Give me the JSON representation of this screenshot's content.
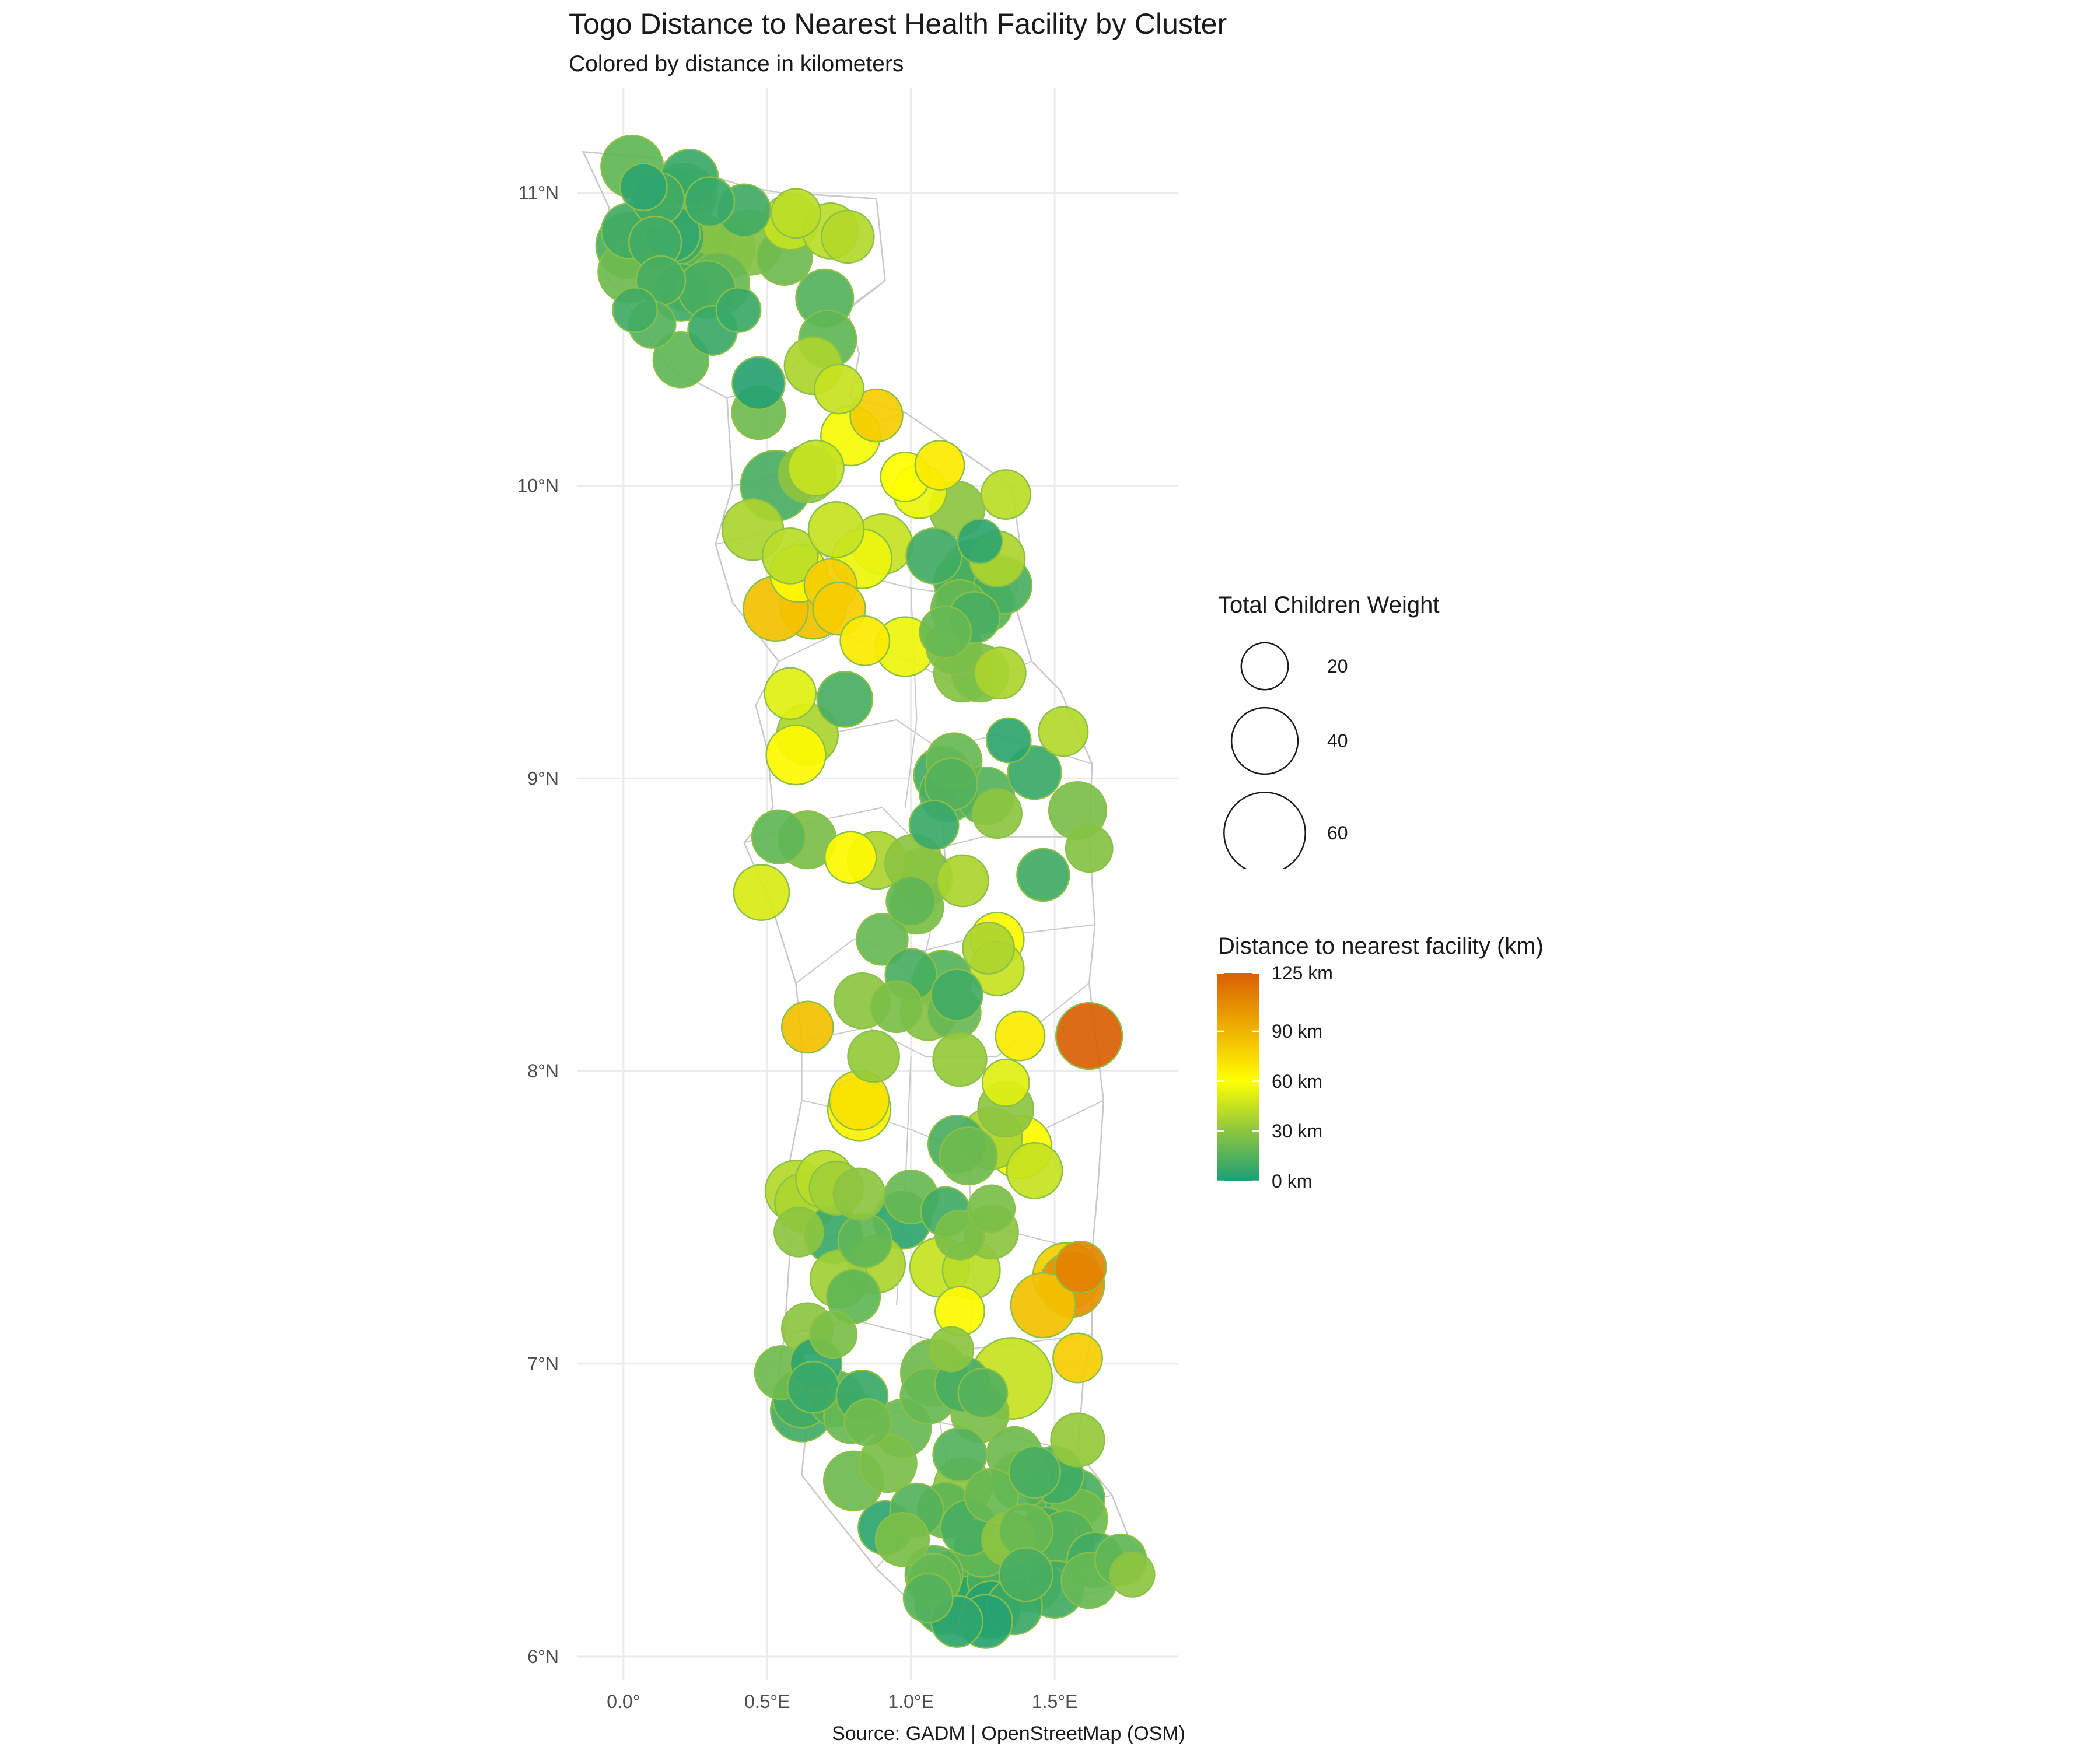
{
  "title": "Togo Distance to Nearest Health Facility by Cluster",
  "subtitle": "Colored by distance in kilometers",
  "caption": "Source: GADM | OpenStreetMap (OSM)",
  "map": {
    "x_axis": {
      "ticks": [
        0.0,
        0.5,
        1.0,
        1.5
      ],
      "labels": [
        "0.0°",
        "0.5°E",
        "1.0°E",
        "1.5°E"
      ],
      "range": [
        -0.16,
        1.93
      ]
    },
    "y_axis": {
      "ticks": [
        6,
        7,
        8,
        9,
        10,
        11
      ],
      "labels": [
        "6°N",
        "7°N",
        "8°N",
        "9°N",
        "10°N",
        "11°N"
      ],
      "range": [
        5.92,
        11.36
      ]
    },
    "grid": true,
    "boundary_color": "#c8c8c8",
    "point_outline": "#8cbf4a"
  },
  "legend_size": {
    "title": "Total Children Weight",
    "entries": [
      {
        "value": 20,
        "label": "20"
      },
      {
        "value": 40,
        "label": "40"
      },
      {
        "value": 60,
        "label": "60"
      }
    ]
  },
  "legend_color": {
    "title": "Distance to nearest facility (km)",
    "min": 0,
    "max": 125,
    "stops": [
      {
        "value": 0,
        "color": "#1b9e77"
      },
      {
        "value": 30,
        "color": "#8cc63f"
      },
      {
        "value": 60,
        "color": "#ffff00"
      },
      {
        "value": 90,
        "color": "#f0b400"
      },
      {
        "value": 125,
        "color": "#d95f02"
      }
    ],
    "labels": [
      {
        "value": 0,
        "label": "0 km"
      },
      {
        "value": 30,
        "label": "30 km"
      },
      {
        "value": 60,
        "label": "60 km"
      },
      {
        "value": 90,
        "label": "90 km"
      },
      {
        "value": 125,
        "label": "125 km"
      }
    ]
  },
  "chart_data": {
    "type": "scatter",
    "x_field": "longitude (°E)",
    "y_field": "latitude (°N)",
    "size_field": "Total Children Weight",
    "color_field": "Distance to nearest facility (km)",
    "points": [
      [
        0.03,
        11.09,
        35,
        18
      ],
      [
        0.07,
        11.02,
        20,
        5
      ],
      [
        0.12,
        10.98,
        25,
        10
      ],
      [
        0.18,
        10.99,
        30,
        8
      ],
      [
        0.23,
        11.05,
        30,
        8
      ],
      [
        0.21,
        10.99,
        38,
        12
      ],
      [
        0.3,
        10.97,
        22,
        8
      ],
      [
        0.42,
        10.94,
        25,
        10
      ],
      [
        0.02,
        10.87,
        28,
        10
      ],
      [
        0.02,
        10.82,
        40,
        12
      ],
      [
        0.11,
        10.83,
        25,
        10
      ],
      [
        0.18,
        10.85,
        30,
        9
      ],
      [
        0.17,
        10.86,
        28,
        6
      ],
      [
        0.27,
        10.82,
        35,
        22
      ],
      [
        0.35,
        10.81,
        35,
        28
      ],
      [
        0.44,
        10.83,
        38,
        28
      ],
      [
        0.56,
        10.78,
        28,
        22
      ],
      [
        0.6,
        10.93,
        22,
        42
      ],
      [
        0.58,
        10.9,
        28,
        45
      ],
      [
        0.72,
        10.87,
        28,
        42
      ],
      [
        0.78,
        10.85,
        25,
        40
      ],
      [
        0.02,
        10.73,
        35,
        22
      ],
      [
        0.13,
        10.7,
        22,
        12
      ],
      [
        0.23,
        10.7,
        35,
        15
      ],
      [
        0.2,
        10.66,
        30,
        10
      ],
      [
        0.29,
        10.67,
        30,
        12
      ],
      [
        0.33,
        10.69,
        35,
        20
      ],
      [
        0.04,
        10.6,
        18,
        10
      ],
      [
        0.1,
        10.55,
        20,
        15
      ],
      [
        0.2,
        10.43,
        28,
        18
      ],
      [
        0.31,
        10.53,
        22,
        8
      ],
      [
        0.4,
        10.6,
        18,
        8
      ],
      [
        0.7,
        10.64,
        30,
        15
      ],
      [
        0.71,
        10.5,
        30,
        18
      ],
      [
        0.66,
        10.41,
        30,
        38
      ],
      [
        0.47,
        10.35,
        25,
        3
      ],
      [
        0.75,
        10.33,
        22,
        45
      ],
      [
        0.47,
        10.25,
        26,
        22
      ],
      [
        0.88,
        10.24,
        25,
        80
      ],
      [
        0.79,
        10.17,
        32,
        58
      ],
      [
        0.53,
        10.0,
        45,
        12
      ],
      [
        0.64,
        10.04,
        30,
        30
      ],
      [
        0.67,
        10.06,
        28,
        45
      ],
      [
        0.98,
        10.03,
        22,
        60
      ],
      [
        1.1,
        10.07,
        22,
        68
      ],
      [
        1.03,
        9.98,
        26,
        55
      ],
      [
        1.16,
        9.92,
        28,
        30
      ],
      [
        1.33,
        9.97,
        22,
        42
      ],
      [
        0.45,
        9.85,
        34,
        38
      ],
      [
        0.58,
        9.76,
        28,
        42
      ],
      [
        0.74,
        9.85,
        28,
        45
      ],
      [
        0.83,
        9.75,
        32,
        55
      ],
      [
        0.9,
        9.8,
        33,
        45
      ],
      [
        1.08,
        9.76,
        28,
        10
      ],
      [
        1.24,
        9.81,
        18,
        5
      ],
      [
        1.3,
        9.75,
        28,
        38
      ],
      [
        1.22,
        9.71,
        35,
        15
      ],
      [
        1.18,
        9.67,
        30,
        12
      ],
      [
        1.32,
        9.66,
        30,
        12
      ],
      [
        1.2,
        9.62,
        38,
        12
      ],
      [
        1.25,
        9.6,
        34,
        15
      ],
      [
        0.61,
        9.7,
        30,
        62
      ],
      [
        0.72,
        9.66,
        25,
        80
      ],
      [
        0.53,
        9.58,
        38,
        85
      ],
      [
        0.66,
        9.59,
        40,
        85
      ],
      [
        0.75,
        9.58,
        25,
        80
      ],
      [
        0.84,
        9.47,
        22,
        68
      ],
      [
        0.98,
        9.45,
        32,
        55
      ],
      [
        1.17,
        9.58,
        30,
        20
      ],
      [
        1.22,
        9.55,
        24,
        12
      ],
      [
        1.12,
        9.5,
        24,
        20
      ],
      [
        1.15,
        9.45,
        28,
        25
      ],
      [
        1.18,
        9.36,
        30,
        28
      ],
      [
        1.24,
        9.36,
        30,
        25
      ],
      [
        1.31,
        9.36,
        24,
        38
      ],
      [
        0.58,
        9.29,
        24,
        52
      ],
      [
        0.77,
        9.27,
        28,
        12
      ],
      [
        0.64,
        9.15,
        34,
        38
      ],
      [
        0.6,
        9.08,
        32,
        62
      ],
      [
        1.15,
        9.06,
        28,
        20
      ],
      [
        1.34,
        9.13,
        18,
        5
      ],
      [
        1.53,
        9.16,
        22,
        40
      ],
      [
        1.11,
        9.01,
        30,
        10
      ],
      [
        1.14,
        8.98,
        25,
        15
      ],
      [
        1.13,
        8.95,
        30,
        12
      ],
      [
        1.26,
        8.94,
        30,
        15
      ],
      [
        1.43,
        9.02,
        26,
        8
      ],
      [
        1.58,
        8.89,
        30,
        25
      ],
      [
        1.3,
        8.88,
        22,
        30
      ],
      [
        1.08,
        8.84,
        22,
        8
      ],
      [
        0.54,
        8.8,
        26,
        18
      ],
      [
        0.64,
        8.79,
        30,
        25
      ],
      [
        0.79,
        8.73,
        24,
        62
      ],
      [
        0.88,
        8.72,
        30,
        38
      ],
      [
        1.01,
        8.71,
        30,
        30
      ],
      [
        1.04,
        8.66,
        32,
        20
      ],
      [
        1.18,
        8.65,
        24,
        38
      ],
      [
        1.46,
        8.67,
        25,
        10
      ],
      [
        1.62,
        8.76,
        20,
        28
      ],
      [
        0.48,
        8.61,
        28,
        50
      ],
      [
        1.0,
        8.58,
        22,
        18
      ],
      [
        1.02,
        8.56,
        26,
        25
      ],
      [
        0.9,
        8.45,
        24,
        20
      ],
      [
        1.3,
        8.45,
        26,
        62
      ],
      [
        1.27,
        8.42,
        24,
        38
      ],
      [
        1.3,
        8.35,
        26,
        45
      ],
      [
        1.0,
        8.33,
        24,
        12
      ],
      [
        1.11,
        8.31,
        32,
        15
      ],
      [
        1.16,
        8.26,
        24,
        10
      ],
      [
        0.83,
        8.24,
        28,
        30
      ],
      [
        0.95,
        8.22,
        24,
        25
      ],
      [
        1.06,
        8.2,
        28,
        28
      ],
      [
        1.15,
        8.2,
        26,
        20
      ],
      [
        0.64,
        8.15,
        24,
        85
      ],
      [
        1.38,
        8.12,
        22,
        68
      ],
      [
        1.62,
        8.12,
        40,
        125
      ],
      [
        0.87,
        8.05,
        24,
        32
      ],
      [
        1.17,
        8.04,
        26,
        32
      ],
      [
        1.33,
        7.96,
        20,
        52
      ],
      [
        0.82,
        7.9,
        32,
        72
      ],
      [
        0.82,
        7.87,
        36,
        65
      ],
      [
        1.33,
        7.87,
        28,
        30
      ],
      [
        1.16,
        7.75,
        30,
        12
      ],
      [
        1.28,
        7.77,
        34,
        38
      ],
      [
        1.38,
        7.74,
        36,
        62
      ],
      [
        1.2,
        7.71,
        30,
        22
      ],
      [
        1.43,
        7.66,
        28,
        45
      ],
      [
        0.6,
        7.59,
        34,
        40
      ],
      [
        0.7,
        7.63,
        30,
        42
      ],
      [
        0.74,
        7.6,
        26,
        35
      ],
      [
        0.82,
        7.58,
        24,
        30
      ],
      [
        0.63,
        7.55,
        32,
        38
      ],
      [
        1.0,
        7.57,
        26,
        20
      ],
      [
        1.12,
        7.52,
        22,
        10
      ],
      [
        1.28,
        7.53,
        20,
        25
      ],
      [
        0.61,
        7.45,
        22,
        30
      ],
      [
        0.73,
        7.44,
        30,
        8
      ],
      [
        0.84,
        7.42,
        26,
        18
      ],
      [
        0.97,
        7.49,
        30,
        5
      ],
      [
        1.17,
        7.44,
        22,
        25
      ],
      [
        1.28,
        7.45,
        26,
        30
      ],
      [
        0.88,
        7.34,
        30,
        38
      ],
      [
        0.75,
        7.29,
        30,
        35
      ],
      [
        1.1,
        7.33,
        32,
        45
      ],
      [
        1.21,
        7.32,
        30,
        42
      ],
      [
        1.54,
        7.3,
        40,
        80
      ],
      [
        1.59,
        7.33,
        24,
        110
      ],
      [
        1.56,
        7.27,
        38,
        105
      ],
      [
        0.8,
        7.23,
        26,
        18
      ],
      [
        1.46,
        7.2,
        38,
        85
      ],
      [
        1.17,
        7.18,
        22,
        62
      ],
      [
        0.64,
        7.12,
        24,
        30
      ],
      [
        0.73,
        7.1,
        20,
        25
      ],
      [
        1.14,
        7.05,
        18,
        30
      ],
      [
        1.58,
        7.02,
        22,
        80
      ],
      [
        0.55,
        6.97,
        26,
        22
      ],
      [
        0.67,
        7.0,
        24,
        5
      ],
      [
        1.08,
        6.97,
        40,
        22
      ],
      [
        1.35,
        6.95,
        60,
        45
      ],
      [
        0.66,
        6.92,
        24,
        8
      ],
      [
        0.62,
        6.88,
        30,
        10
      ],
      [
        0.74,
        6.88,
        28,
        15
      ],
      [
        0.83,
        6.89,
        24,
        8
      ],
      [
        1.06,
        6.89,
        28,
        20
      ],
      [
        1.18,
        6.93,
        28,
        12
      ],
      [
        1.25,
        6.9,
        22,
        15
      ],
      [
        0.62,
        6.84,
        35,
        10
      ],
      [
        0.79,
        6.82,
        26,
        20
      ],
      [
        0.85,
        6.8,
        20,
        22
      ],
      [
        0.97,
        6.78,
        30,
        20
      ],
      [
        1.24,
        6.83,
        30,
        25
      ],
      [
        1.58,
        6.74,
        26,
        32
      ],
      [
        1.17,
        6.69,
        26,
        15
      ],
      [
        1.36,
        6.69,
        28,
        22
      ],
      [
        1.43,
        6.63,
        24,
        12
      ],
      [
        1.5,
        6.62,
        30,
        10
      ],
      [
        0.8,
        6.6,
        32,
        22
      ],
      [
        0.92,
        6.66,
        30,
        25
      ],
      [
        1.18,
        6.58,
        30,
        30
      ],
      [
        1.28,
        6.55,
        26,
        20
      ],
      [
        1.38,
        6.6,
        30,
        15
      ],
      [
        1.5,
        6.58,
        34,
        15
      ],
      [
        1.57,
        6.54,
        32,
        12
      ],
      [
        1.12,
        6.5,
        28,
        18
      ],
      [
        1.52,
        6.49,
        40,
        18
      ],
      [
        1.58,
        6.47,
        32,
        22
      ],
      [
        0.91,
        6.44,
        26,
        5
      ],
      [
        1.02,
        6.5,
        26,
        15
      ],
      [
        1.2,
        6.44,
        28,
        12
      ],
      [
        1.34,
        6.4,
        26,
        30
      ],
      [
        1.4,
        6.43,
        26,
        20
      ],
      [
        1.47,
        6.41,
        30,
        10
      ],
      [
        1.54,
        6.4,
        30,
        15
      ],
      [
        0.97,
        6.4,
        26,
        25
      ],
      [
        1.25,
        6.37,
        30,
        18
      ],
      [
        1.64,
        6.33,
        28,
        10
      ],
      [
        1.73,
        6.33,
        24,
        18
      ],
      [
        1.77,
        6.28,
        18,
        30
      ],
      [
        1.08,
        6.28,
        30,
        15
      ],
      [
        1.15,
        6.25,
        38,
        12
      ],
      [
        1.22,
        6.27,
        36,
        15
      ],
      [
        1.3,
        6.26,
        32,
        12
      ],
      [
        1.42,
        6.25,
        30,
        15
      ],
      [
        1.5,
        6.23,
        30,
        10
      ],
      [
        1.62,
        6.26,
        28,
        20
      ],
      [
        1.12,
        6.18,
        34,
        8
      ],
      [
        1.2,
        6.17,
        34,
        5
      ],
      [
        1.28,
        6.16,
        30,
        3
      ],
      [
        1.36,
        6.17,
        28,
        8
      ],
      [
        1.26,
        6.12,
        26,
        3
      ],
      [
        1.16,
        6.12,
        24,
        5
      ],
      [
        1.4,
        6.28,
        26,
        12
      ],
      [
        1.08,
        6.26,
        26,
        20
      ],
      [
        1.06,
        6.2,
        22,
        15
      ]
    ]
  }
}
